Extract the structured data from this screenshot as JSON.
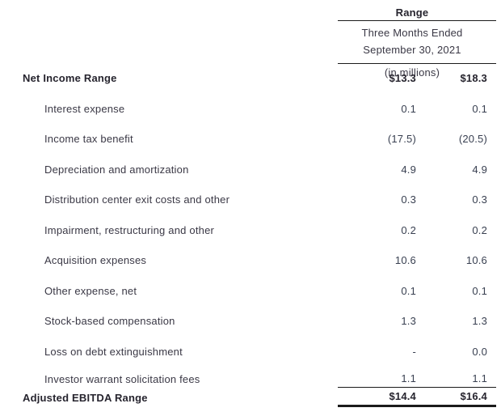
{
  "document": {
    "header": {
      "range_label": "Range",
      "period_line1": "Three Months Ended",
      "period_line2": "September 30, 2021",
      "units_label": "(in millions)"
    },
    "rows": [
      {
        "label": "Net Income Range",
        "low": "$13.3",
        "high": "$18.3"
      },
      {
        "label": "Interest expense",
        "low": "0.1",
        "high": "0.1"
      },
      {
        "label": "Income tax benefit",
        "low": "(17.5)",
        "high": "(20.5)"
      },
      {
        "label": "Depreciation and amortization",
        "low": "4.9",
        "high": "4.9"
      },
      {
        "label": "Distribution center exit costs and other",
        "low": "0.3",
        "high": "0.3"
      },
      {
        "label": "Impairment, restructuring and other",
        "low": "0.2",
        "high": "0.2"
      },
      {
        "label": "Acquisition expenses",
        "low": "10.6",
        "high": "10.6"
      },
      {
        "label": "Other expense, net",
        "low": "0.1",
        "high": "0.1"
      },
      {
        "label": "Stock-based compensation",
        "low": "1.3",
        "high": "1.3"
      },
      {
        "label": "Loss on debt extinguishment",
        "low": "-",
        "high": "0.0"
      },
      {
        "label": "Investor warrant solicitation fees",
        "low": "1.1",
        "high": "1.1"
      }
    ],
    "total": {
      "label": "Adjusted EBITDA Range",
      "low": "$14.4",
      "high": "$16.4"
    }
  },
  "colors": {
    "background": "#ffffff",
    "text": "#3a3845",
    "bold_text": "#26242e",
    "value_text": "#394051",
    "rule": "#1b1b1b"
  }
}
